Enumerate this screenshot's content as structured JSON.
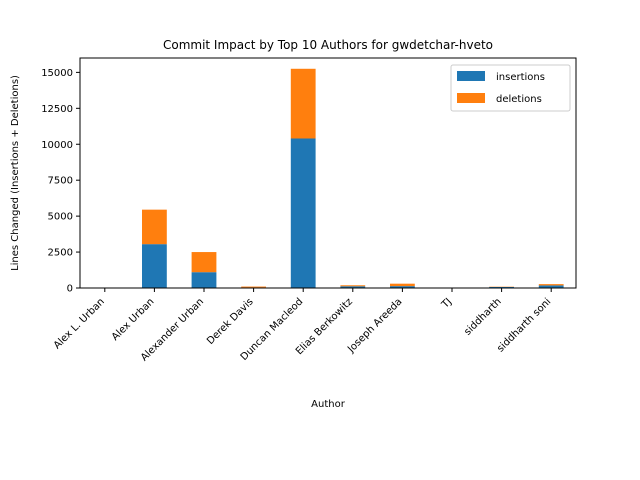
{
  "chart_data": {
    "type": "bar",
    "stacked": true,
    "title": "Commit Impact by Top 10 Authors for gwdetchar-hveto",
    "xlabel": "Author",
    "ylabel": "Lines Changed (Insertions + Deletions)",
    "ylim": [
      0,
      16000
    ],
    "yticks": [
      0,
      2500,
      5000,
      7500,
      10000,
      12500,
      15000
    ],
    "ytick_labels": [
      "0",
      "2500",
      "5000",
      "7500",
      "10000",
      "12500",
      "15000"
    ],
    "categories": [
      "Alex L. Urban",
      "Alex Urban",
      "Alexander Urban",
      "Derek Davis",
      "Duncan Macleod",
      "Elias Berkowitz",
      "Joseph Areeda",
      "TJ",
      "siddharth",
      "siddharth soni"
    ],
    "series": [
      {
        "name": "insertions",
        "color": "#1f77b4",
        "values": [
          5,
          3050,
          1100,
          40,
          10400,
          120,
          130,
          5,
          70,
          180
        ]
      },
      {
        "name": "deletions",
        "color": "#ff7f0e",
        "values": [
          3,
          2400,
          1400,
          60,
          4850,
          70,
          170,
          3,
          20,
          90
        ]
      }
    ],
    "grid": false,
    "legend_position": "top-right"
  }
}
